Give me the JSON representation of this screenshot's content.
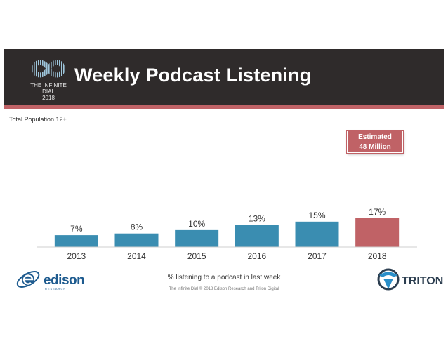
{
  "header": {
    "title": "Weekly Podcast Listening",
    "logo_line1": "THE INFINITE DIAL",
    "logo_line2": "2018"
  },
  "subtitle": "Total Population 12+",
  "callout": {
    "line1": "Estimated",
    "line2": "48 Million"
  },
  "chart_data": {
    "type": "bar",
    "categories": [
      "2013",
      "2014",
      "2015",
      "2016",
      "2017",
      "2018"
    ],
    "values": [
      7,
      8,
      10,
      13,
      15,
      17
    ],
    "labels": [
      "7%",
      "8%",
      "10%",
      "13%",
      "15%",
      "17%"
    ],
    "xlabel": "% listening to a podcast in last week",
    "ylim": [
      0,
      20
    ],
    "grid": false,
    "colors": {
      "default": "#3a8db1",
      "highlight": "#c06266",
      "highlight_index": 5
    }
  },
  "footer": {
    "copyright": "The Infinite Dial   © 2018 Edison Research and Triton Digital"
  },
  "logos": {
    "edison_word": "edison",
    "edison_sub": "RESEARCH",
    "triton_word": "TRITON"
  },
  "colors": {
    "header_bg": "#2f2b2b",
    "accent": "#c06266",
    "bar": "#3a8db1"
  }
}
